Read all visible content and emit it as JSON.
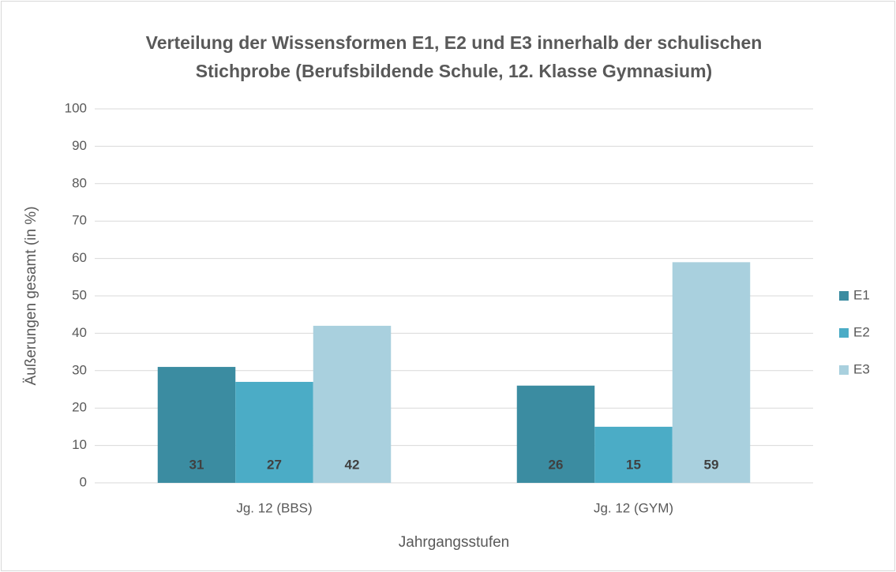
{
  "chart_data": {
    "type": "bar",
    "title": [
      "Verteilung der Wissensformen E1, E2 und E3 innerhalb der schulischen",
      "Stichprobe (Berufsbildende Schule, 12. Klasse Gymnasium)"
    ],
    "x_label": "Jahrgangsstufen",
    "y_label": "Äußerungen gesamt (in %)",
    "categories": [
      "Jg. 12 (BBS)",
      "Jg. 12 (GYM)"
    ],
    "series": [
      {
        "name": "E1",
        "color": "#3b8ca1",
        "values": [
          31,
          26
        ]
      },
      {
        "name": "E2",
        "color": "#4bacc6",
        "values": [
          27,
          15
        ]
      },
      {
        "name": "E3",
        "color": "#a9d0de",
        "values": [
          42,
          59
        ]
      }
    ],
    "ylim": [
      0,
      100
    ],
    "yticks": [
      0,
      10,
      20,
      30,
      40,
      50,
      60,
      70,
      80,
      90,
      100
    ],
    "grid": true,
    "legend": "right"
  }
}
